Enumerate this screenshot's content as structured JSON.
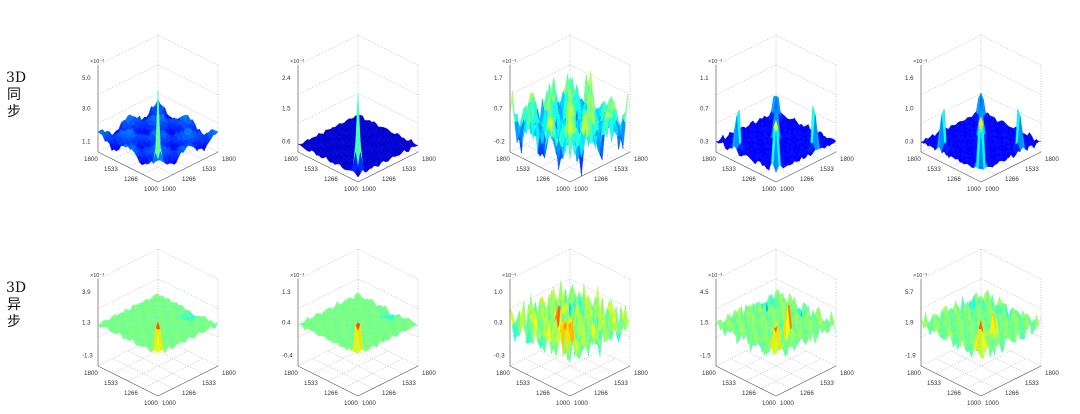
{
  "row_labels": [
    {
      "line1": "3D",
      "line2": "同",
      "line3": "步"
    },
    {
      "line1": "3D",
      "line2": "异",
      "line3": "步"
    }
  ],
  "chart_data": [
    {
      "type": "surface",
      "row": 0,
      "panel": 1,
      "exponent": "×10⁻³",
      "zticks": [
        "5.0",
        "3.0",
        "1.1"
      ],
      "xticks": [
        "1800",
        "1533",
        "1266",
        "1000"
      ],
      "yticks": [
        "1800",
        "1533",
        "1266",
        "1000"
      ],
      "profile": "central-peak"
    },
    {
      "type": "surface",
      "row": 0,
      "panel": 2,
      "exponent": "×10⁻³",
      "zticks": [
        "2.4",
        "1.5",
        "0.6"
      ],
      "xticks": [
        "1800",
        "1533",
        "1266",
        "1000"
      ],
      "yticks": [
        "1800",
        "1533",
        "1266",
        "1000"
      ],
      "profile": "central-peak-flat"
    },
    {
      "type": "surface",
      "row": 0,
      "panel": 3,
      "exponent": "×10⁻³",
      "zticks": [
        "1.7",
        "0.7",
        "-0.2"
      ],
      "xticks": [
        "1800",
        "1533",
        "1266",
        "1000"
      ],
      "yticks": [
        "1800",
        "1533",
        "1266",
        "1000"
      ],
      "profile": "many-peaks"
    },
    {
      "type": "surface",
      "row": 0,
      "panel": 4,
      "exponent": "×10⁻³",
      "zticks": [
        "1.1",
        "0.7",
        "0.3"
      ],
      "xticks": [
        "1800",
        "1533",
        "1266",
        "1000"
      ],
      "yticks": [
        "1800",
        "1533",
        "1266",
        "1000"
      ],
      "profile": "corner-peaks"
    },
    {
      "type": "surface",
      "row": 0,
      "panel": 5,
      "exponent": "×10⁻³",
      "zticks": [
        "1.6",
        "1.0",
        "0.3"
      ],
      "xticks": [
        "1800",
        "1533",
        "1266",
        "1000"
      ],
      "yticks": [
        "1800",
        "1533",
        "1266",
        "1000"
      ],
      "profile": "corner-peaks"
    },
    {
      "type": "surface",
      "row": 1,
      "panel": 1,
      "exponent": "×10⁻³",
      "zticks": [
        "3.9",
        "1.3",
        "-1.3"
      ],
      "xticks": [
        "1800",
        "1533",
        "1266",
        "1000"
      ],
      "yticks": [
        "1800",
        "1533",
        "1266",
        "1000"
      ],
      "profile": "async-back-peak"
    },
    {
      "type": "surface",
      "row": 1,
      "panel": 2,
      "exponent": "×10⁻³",
      "zticks": [
        "1.3",
        "0.4",
        "-0.4"
      ],
      "xticks": [
        "1800",
        "1533",
        "1266",
        "1000"
      ],
      "yticks": [
        "1800",
        "1533",
        "1266",
        "1000"
      ],
      "profile": "async-back-peak"
    },
    {
      "type": "surface",
      "row": 1,
      "panel": 3,
      "exponent": "×10⁻³",
      "zticks": [
        "1.0",
        "0.3",
        "-0.3"
      ],
      "xticks": [
        "1800",
        "1533",
        "1266",
        "1000"
      ],
      "yticks": [
        "1800",
        "1533",
        "1266",
        "1000"
      ],
      "profile": "async-rough"
    },
    {
      "type": "surface",
      "row": 1,
      "panel": 4,
      "exponent": "×10⁻³",
      "zticks": [
        "4.5",
        "1.5",
        "-1.5"
      ],
      "xticks": [
        "1800",
        "1533",
        "1266",
        "1000"
      ],
      "yticks": [
        "1800",
        "1533",
        "1266",
        "1000"
      ],
      "profile": "async-mixed"
    },
    {
      "type": "surface",
      "row": 1,
      "panel": 5,
      "exponent": "×10⁻³",
      "zticks": [
        "5.7",
        "1.9",
        "-1.9"
      ],
      "xticks": [
        "1800",
        "1533",
        "1266",
        "1000"
      ],
      "yticks": [
        "1800",
        "1533",
        "1266",
        "1000"
      ],
      "profile": "async-mixed"
    }
  ]
}
